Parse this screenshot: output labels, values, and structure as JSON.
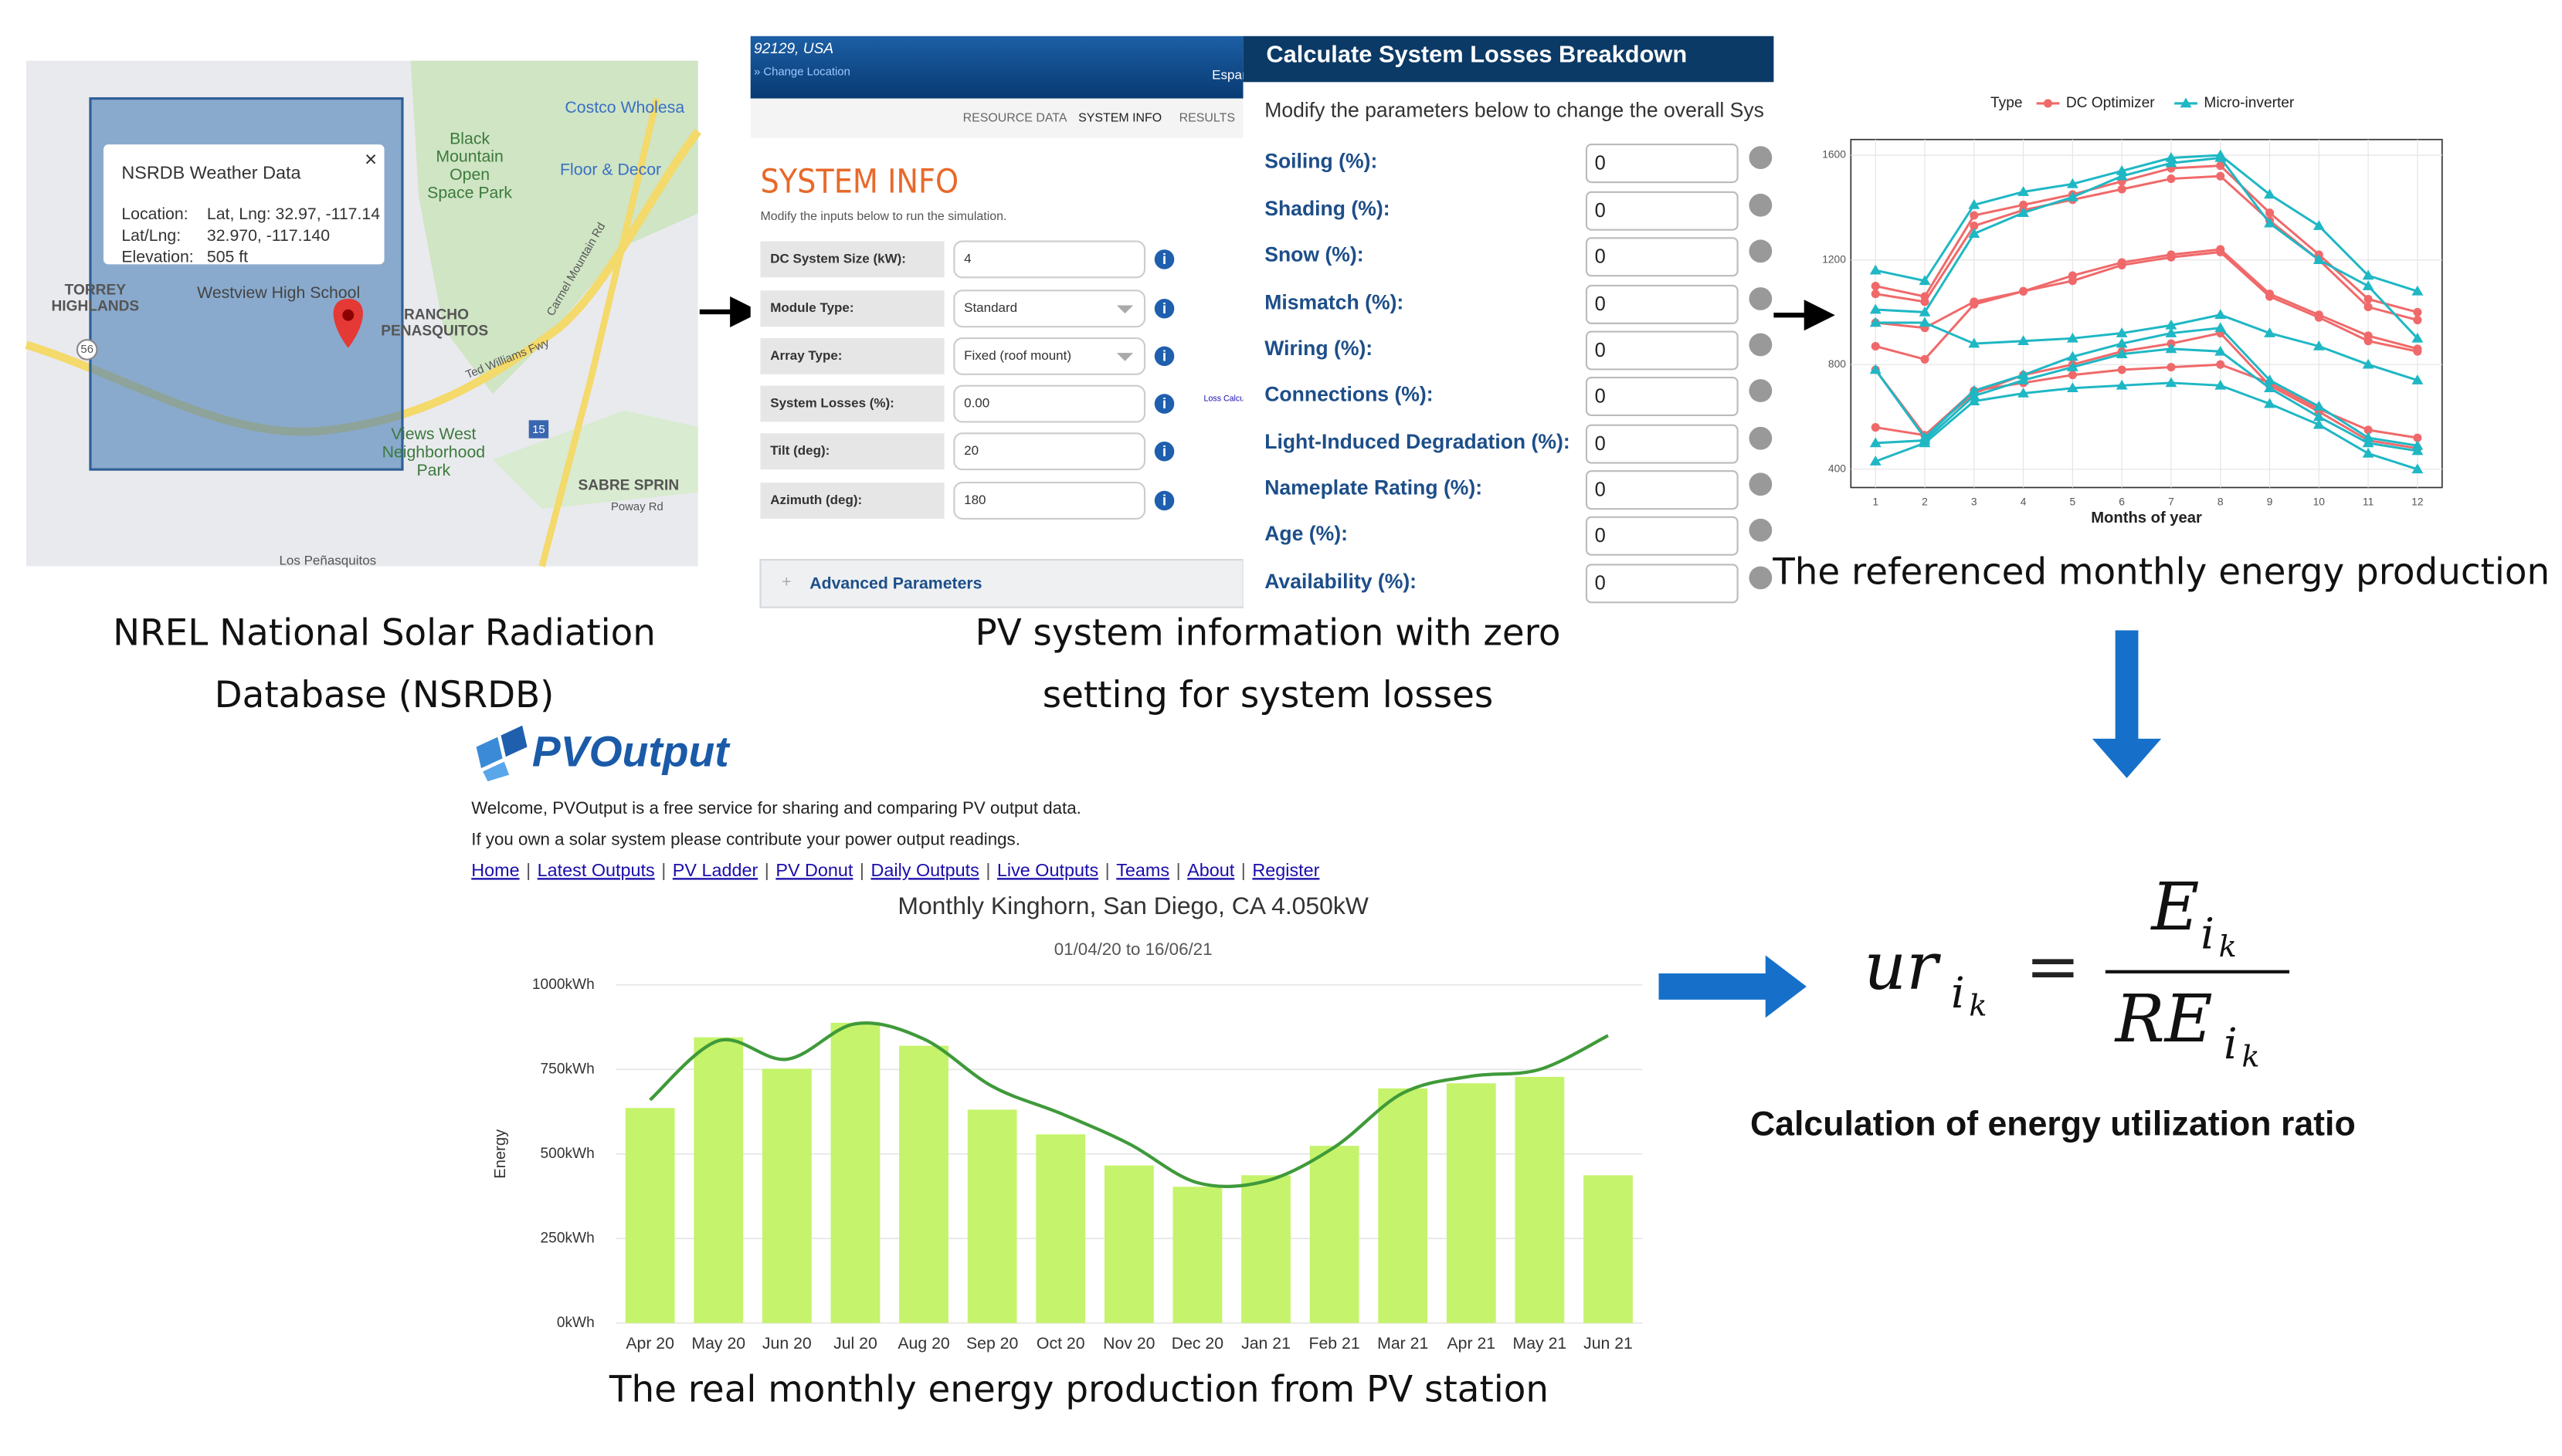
{
  "map_panel": {
    "popup": {
      "title": "NSRDB Weather Data",
      "close": "×",
      "rows": [
        [
          "Location:",
          "Lat, Lng: 32.97, -117.14"
        ],
        [
          "Lat/Lng:",
          "32.970, -117.140"
        ],
        [
          "Elevation:",
          "505 ft"
        ]
      ]
    },
    "labels": [
      "Costco Wholesa",
      "Black",
      "Mountain",
      "Open",
      "Space Park",
      "Floor & Decor",
      "TORREY",
      "HIGHLANDS",
      "Westview High School",
      "RANCHO",
      "PENASQUITOS",
      "Views West",
      "Neighborhood",
      "Park",
      "SABRE SPRIN",
      "Ted Williams Fwy",
      "Carmel Mountain Rd",
      "Poway Rd",
      "Los Peñasquitos",
      "56",
      "15"
    ],
    "caption": [
      "NREL National Solar Radiation",
      "Database (NSRDB)"
    ]
  },
  "system_info": {
    "location": "92129, USA",
    "change_location": "» Change Location",
    "language": "Españo",
    "tabs": [
      "RESOURCE DATA",
      "SYSTEM INFO",
      "RESULTS"
    ],
    "heading": "SYSTEM INFO",
    "subtitle": "Modify the inputs below to run the simulation.",
    "fields": [
      [
        "DC System Size (kW):",
        "4"
      ],
      [
        "Module Type:",
        "Standard"
      ],
      [
        "Array Type:",
        "Fixed (roof mount)"
      ],
      [
        "System Losses (%):",
        "0.00"
      ],
      [
        "Tilt (deg):",
        "20"
      ],
      [
        "Azimuth (deg):",
        "180"
      ]
    ],
    "loss_link": "Loss Calculator",
    "advanced": "Advanced Parameters",
    "caption": [
      "PV system information with zero",
      "setting for system losses"
    ]
  },
  "losses": {
    "title": "Calculate System Losses Breakdown",
    "subtitle": "Modify the parameters below to change the overall Sys",
    "fields": [
      [
        "Soiling (%):",
        "0"
      ],
      [
        "Shading (%):",
        "0"
      ],
      [
        "Snow (%):",
        "0"
      ],
      [
        "Mismatch (%):",
        "0"
      ],
      [
        "Wiring (%):",
        "0"
      ],
      [
        "Connections (%):",
        "0"
      ],
      [
        "Light-Induced Degradation (%):",
        "0"
      ],
      [
        "Nameplate Rating (%):",
        "0"
      ],
      [
        "Age (%):",
        "0"
      ],
      [
        "Availability (%):",
        "0"
      ]
    ]
  },
  "pvoutput": {
    "logo": "PVOutput",
    "welcome": [
      "Welcome, PVOutput is a free service for sharing and comparing PV output data.",
      "If you own a solar system please contribute your power output readings."
    ],
    "links": [
      "Home",
      "Latest Outputs",
      "PV Ladder",
      "PV Donut",
      "Daily Outputs",
      "Live Outputs",
      "Teams",
      "About",
      "Register"
    ],
    "link_separator": "|"
  },
  "formula": {
    "lhs": "ur",
    "subscript": "i",
    "subsubscript": "k",
    "equals": "=",
    "numerator": "E",
    "denominator": "RE",
    "caption": "Calculation of energy utilization ratio"
  },
  "chart_data": [
    {
      "type": "line",
      "legend_title": "Type",
      "x_label": "Months of year",
      "caption": "The referenced monthly energy production",
      "x": [
        1,
        2,
        3,
        4,
        5,
        6,
        7,
        8,
        9,
        10,
        11,
        12
      ],
      "xlim": [
        0.5,
        12.5
      ],
      "xticks": [
        1,
        2,
        3,
        4,
        5,
        6,
        7,
        8,
        9,
        10,
        11,
        12
      ],
      "ylim": [
        330,
        1660
      ],
      "yticks": [
        400,
        800,
        1200,
        1600
      ],
      "grid": true,
      "legend": "top",
      "series": [
        {
          "name": "DC Optimizer",
          "color": "#f0696a",
          "marker": "circle",
          "lines": [
            [
              1100,
              1060,
              1370,
              1410,
              1450,
              1500,
              1550,
              1560,
              1380,
              1220,
              1050,
              1000
            ],
            [
              1070,
              1040,
              1330,
              1390,
              1430,
              1470,
              1510,
              1520,
              1350,
              1200,
              1020,
              970
            ],
            [
              960,
              940,
              1040,
              1080,
              1140,
              1190,
              1220,
              1240,
              1070,
              990,
              910,
              860
            ],
            [
              870,
              820,
              1030,
              1080,
              1120,
              1180,
              1210,
              1230,
              1060,
              980,
              890,
              850
            ],
            [
              560,
              530,
              700,
              730,
              760,
              780,
              790,
              800,
              730,
              630,
              550,
              520
            ],
            [
              780,
              530,
              690,
              760,
              800,
              850,
              880,
              920,
              720,
              620,
              510,
              480
            ]
          ]
        },
        {
          "name": "Micro-inverter",
          "color": "#1fb7c4",
          "marker": "triangle",
          "lines": [
            [
              1160,
              1120,
              1410,
              1460,
              1490,
              1540,
              1590,
              1600,
              1450,
              1330,
              1140,
              1080
            ],
            [
              1010,
              1000,
              1300,
              1380,
              1440,
              1520,
              1570,
              1590,
              1340,
              1200,
              1100,
              900
            ],
            [
              960,
              960,
              880,
              890,
              900,
              920,
              950,
              990,
              920,
              870,
              800,
              740
            ],
            [
              780,
              520,
              700,
              760,
              830,
              880,
              920,
              940,
              740,
              640,
              520,
              490
            ],
            [
              500,
              510,
              680,
              740,
              790,
              840,
              860,
              850,
              710,
              600,
              500,
              470
            ],
            [
              430,
              500,
              660,
              690,
              710,
              720,
              730,
              720,
              650,
              570,
              460,
              400
            ]
          ]
        }
      ]
    },
    {
      "type": "bar",
      "title": "Monthly Kinghorn, San Diego, CA 4.050kW",
      "subtitle": "01/04/20 to 16/06/21",
      "y_label": "Energy",
      "caption": "The real monthly energy production  from PV station",
      "categories": [
        "Apr 20",
        "May 20",
        "Jun 20",
        "Jul 20",
        "Aug 20",
        "Sep 20",
        "Oct 20",
        "Nov 20",
        "Dec 20",
        "Jan 21",
        "Feb 21",
        "Mar 21",
        "Apr 21",
        "May 21",
        "Jun 21"
      ],
      "values": [
        636,
        845,
        752,
        888,
        820,
        631,
        558,
        466,
        403,
        437,
        524,
        694,
        709,
        728,
        437
      ],
      "color": "#c5f36b",
      "line_values": [
        660,
        835,
        780,
        885,
        840,
        700,
        620,
        530,
        415,
        420,
        520,
        680,
        730,
        750,
        850
      ],
      "line_color": "#3f9a3a",
      "ylim": [
        0,
        1000
      ],
      "yticks": [
        {
          "value": 0,
          "label": "0kWh"
        },
        {
          "value": 250,
          "label": "250kWh"
        },
        {
          "value": 500,
          "label": "500kWh"
        },
        {
          "value": 750,
          "label": "750kWh"
        },
        {
          "value": 1000,
          "label": "1000kWh"
        }
      ],
      "grid": true
    }
  ]
}
